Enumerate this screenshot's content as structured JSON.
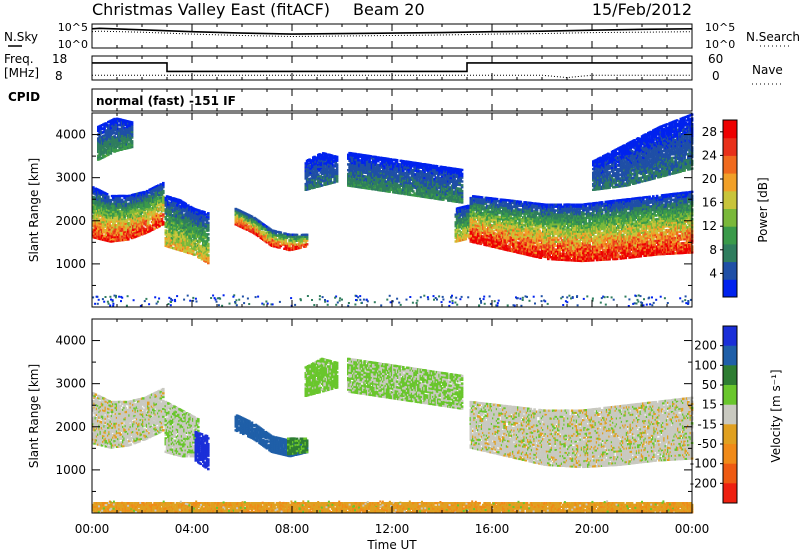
{
  "header": {
    "radar": "Christmas Valley East (fitACF)",
    "beam": "Beam 20",
    "date": "15/Feb/2012"
  },
  "noise_panel": {
    "left_label": "N.Sky",
    "right_label": "N.Search",
    "left_ticks": [
      "10^5",
      "10^0"
    ],
    "right_ticks": [
      "10^5",
      "10^0"
    ]
  },
  "freq_panel": {
    "left_label_1": "Freq.",
    "left_label_2": "[MHz]",
    "right_label": "Nave",
    "left_ticks": [
      "18",
      "8"
    ],
    "right_ticks": [
      "60",
      "0"
    ]
  },
  "cpid": {
    "label": "CPID",
    "value": "normal (fast) -151 IF"
  },
  "colors": {
    "power": [
      "#0022ee",
      "#1f4fa6",
      "#2f7d5e",
      "#3a9a4a",
      "#7ab83a",
      "#c8c43a",
      "#f1a028",
      "#f06a1e",
      "#e8301a",
      "#ee0000"
    ],
    "velocity": [
      "#1a2fd8",
      "#1f5fa8",
      "#2e7d32",
      "#69c62c",
      "#c9c9c0",
      "#e0a020",
      "#f08a18",
      "#ee5a12",
      "#ee2010"
    ]
  },
  "chart_data": [
    {
      "type": "line",
      "name": "noise",
      "x_unit": "hours UT",
      "series": [
        {
          "name": "N.Sky",
          "x": [
            0,
            0.3,
            2,
            4,
            6,
            8,
            10,
            12,
            14,
            16,
            18,
            20,
            22,
            24
          ],
          "y": [
            4.0,
            4.1,
            3.8,
            3.4,
            3.1,
            2.9,
            3.0,
            3.1,
            3.2,
            3.4,
            3.5,
            3.7,
            3.9,
            4.0
          ]
        },
        {
          "name": "N.Search",
          "x": [
            0,
            0.3,
            2,
            4,
            6,
            8,
            10,
            12,
            14,
            16,
            18,
            20,
            22,
            24
          ],
          "y": [
            3.4,
            3.5,
            3.3,
            2.9,
            2.6,
            2.4,
            2.5,
            2.6,
            2.7,
            2.9,
            3.0,
            3.2,
            3.3,
            3.4
          ]
        }
      ]
    },
    {
      "type": "line",
      "name": "frequency / nave",
      "x_unit": "hours UT",
      "series": [
        {
          "name": "Freq.",
          "x": [
            0,
            3,
            3,
            15,
            15,
            24
          ],
          "y": [
            16,
            16,
            11,
            11,
            16,
            16
          ]
        },
        {
          "name": "Nave",
          "x": [
            0,
            18,
            19,
            20,
            24
          ],
          "y": [
            12,
            12,
            6,
            12,
            12
          ]
        }
      ]
    },
    {
      "type": "heatmap",
      "name": "power",
      "xlabel": "Time UT",
      "ylabel": "Slant Range [km]",
      "xlim": [
        0,
        24
      ],
      "ylim": [
        0,
        4500
      ],
      "x_ticks": [
        "00:00",
        "04:00",
        "08:00",
        "12:00",
        "16:00",
        "20:00",
        "00:00"
      ],
      "y_ticks": [
        1000,
        2000,
        3000,
        4000
      ],
      "colorbar": {
        "label": "Power [dB]",
        "ticks": [
          4,
          8,
          12,
          16,
          20,
          24,
          28
        ],
        "range": [
          0,
          30
        ]
      },
      "regions": [
        {
          "t0": 0.0,
          "t1": 2.8,
          "r_bottom": [
            1600,
            1500,
            1550,
            1700,
            1900
          ],
          "r_top": [
            2800,
            2600,
            2600,
            2700,
            2900
          ],
          "peak": 26
        },
        {
          "t0": 0.2,
          "t1": 1.6,
          "r_bottom": [
            3400,
            3600,
            3700
          ],
          "r_top": [
            4200,
            4400,
            4300
          ],
          "peak": 9
        },
        {
          "t0": 2.9,
          "t1": 4.6,
          "r_bottom": [
            1400,
            1300,
            1200,
            1000
          ],
          "r_top": [
            2600,
            2500,
            2300,
            2200
          ],
          "peak": 18
        },
        {
          "t0": 5.7,
          "t1": 8.6,
          "r_bottom": [
            1900,
            1700,
            1400,
            1300,
            1400
          ],
          "r_top": [
            2300,
            2100,
            1800,
            1700,
            1700
          ],
          "peak": 27
        },
        {
          "t0": 8.5,
          "t1": 9.8,
          "r_bottom": [
            2700,
            2800,
            2900
          ],
          "r_top": [
            3400,
            3600,
            3500
          ],
          "peak": 6
        },
        {
          "t0": 10.2,
          "t1": 14.8,
          "r_bottom": [
            2800,
            2700,
            2600,
            2500,
            2400
          ],
          "r_top": [
            3600,
            3500,
            3400,
            3300,
            3200
          ],
          "peak": 8
        },
        {
          "t0": 14.5,
          "t1": 15.2,
          "r_bottom": [
            1500,
            1600
          ],
          "r_top": [
            2300,
            2400
          ],
          "peak": 18
        },
        {
          "t0": 15.1,
          "t1": 24.0,
          "r_bottom": [
            1500,
            1300,
            1100,
            1050,
            1100,
            1200,
            1250
          ],
          "r_top": [
            2600,
            2500,
            2400,
            2400,
            2500,
            2600,
            2700
          ],
          "peak": 28
        },
        {
          "t0": 20.0,
          "t1": 24.0,
          "r_bottom": [
            2700,
            2800,
            3000,
            3200
          ],
          "r_top": [
            3400,
            3800,
            4200,
            4500
          ],
          "peak": 6
        }
      ]
    },
    {
      "type": "heatmap",
      "name": "velocity",
      "xlabel": "Time UT",
      "ylabel": "Slant Range [km]",
      "xlim": [
        0,
        24
      ],
      "ylim": [
        0,
        4500
      ],
      "x_ticks": [
        "00:00",
        "04:00",
        "08:00",
        "12:00",
        "16:00",
        "20:00",
        "00:00"
      ],
      "y_ticks": [
        1000,
        2000,
        3000,
        4000
      ],
      "colorbar": {
        "label": "Velocity [m s⁻¹]",
        "ticks": [
          200,
          100,
          50,
          15,
          -15,
          -50,
          -100,
          -200
        ],
        "range": [
          -250,
          250
        ]
      },
      "regions": [
        {
          "t0": 0.0,
          "t1": 2.8,
          "r_bottom": [
            1600,
            1500,
            1550,
            1700,
            1900
          ],
          "r_top": [
            2800,
            2600,
            2600,
            2700,
            2900
          ],
          "value": 0
        },
        {
          "t0": 2.9,
          "t1": 4.2,
          "r_bottom": [
            1400,
            1300,
            1300
          ],
          "r_top": [
            2600,
            2400,
            2200
          ],
          "value": 10
        },
        {
          "t0": 4.1,
          "t1": 4.6,
          "r_bottom": [
            1200,
            1000
          ],
          "r_top": [
            1900,
            1800
          ],
          "value": 230
        },
        {
          "t0": 5.7,
          "t1": 8.6,
          "r_bottom": [
            1900,
            1700,
            1400,
            1300,
            1400
          ],
          "r_top": [
            2300,
            2100,
            1800,
            1700,
            1700
          ],
          "value": 150
        },
        {
          "t0": 7.8,
          "t1": 8.6,
          "r_bottom": [
            1350,
            1400
          ],
          "r_top": [
            1750,
            1750
          ],
          "value": 60
        },
        {
          "t0": 8.5,
          "t1": 9.8,
          "r_bottom": [
            2700,
            2800,
            2900
          ],
          "r_top": [
            3400,
            3600,
            3500
          ],
          "value": 30
        },
        {
          "t0": 10.2,
          "t1": 14.8,
          "r_bottom": [
            2800,
            2700,
            2600,
            2500,
            2400
          ],
          "r_top": [
            3600,
            3500,
            3400,
            3300,
            3200
          ],
          "value": 20
        },
        {
          "t0": 15.1,
          "t1": 24.0,
          "r_bottom": [
            1500,
            1300,
            1100,
            1050,
            1100,
            1200,
            1250
          ],
          "r_top": [
            2600,
            2500,
            2400,
            2400,
            2500,
            2600,
            2700
          ],
          "value": 0
        },
        {
          "t0": 0.0,
          "t1": 24.0,
          "r_bottom": [
            0,
            0
          ],
          "r_top": [
            250,
            250
          ],
          "value": -40
        }
      ]
    }
  ]
}
